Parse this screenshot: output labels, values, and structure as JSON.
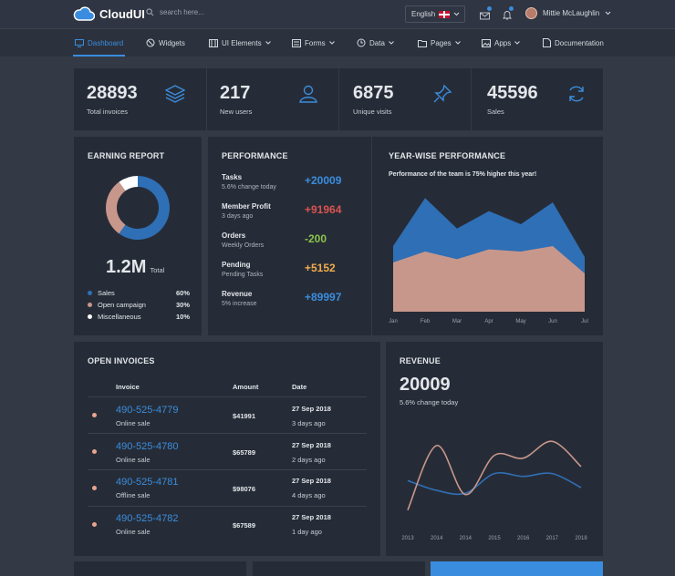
{
  "header": {
    "brand": "CloudUI",
    "search_placeholder": "search here...",
    "language": "English",
    "user_name": "Mittie McLaughlin"
  },
  "nav": [
    {
      "label": "Dashboard",
      "icon": "monitor-icon",
      "active": true
    },
    {
      "label": "Widgets",
      "icon": "target-icon"
    },
    {
      "label": "UI Elements",
      "icon": "layout-icon"
    },
    {
      "label": "Forms",
      "icon": "form-icon"
    },
    {
      "label": "Data",
      "icon": "clock-icon"
    },
    {
      "label": "Pages",
      "icon": "folder-icon"
    },
    {
      "label": "Apps",
      "icon": "image-icon"
    },
    {
      "label": "Documentation",
      "icon": "doc-icon"
    }
  ],
  "stats": [
    {
      "value": "28893",
      "label": "Total invoices",
      "icon": "layers-icon"
    },
    {
      "value": "217",
      "label": "New users",
      "icon": "users-icon"
    },
    {
      "value": "6875",
      "label": "Unique visits",
      "icon": "pin-icon"
    },
    {
      "value": "45596",
      "label": "Sales",
      "icon": "refresh-icon"
    }
  ],
  "earning": {
    "title": "EARNING REPORT",
    "total": "1.2M",
    "total_label": "Total",
    "legend": [
      {
        "label": "Sales",
        "pct": "60%",
        "color": "#2f6fb5"
      },
      {
        "label": "Open campaign",
        "pct": "30%",
        "color": "#c8978b"
      },
      {
        "label": "Miscellaneous",
        "pct": "10%",
        "color": "#ffffff"
      }
    ]
  },
  "performance": {
    "title": "PERFORMANCE",
    "items": [
      {
        "title": "Tasks",
        "sub": "5.6% change today",
        "value": "+20009",
        "color": "#3a8dde"
      },
      {
        "title": "Member Profit",
        "sub": "3 days ago",
        "value": "+91964",
        "color": "#d9534f"
      },
      {
        "title": "Orders",
        "sub": "Weekly Orders",
        "value": "-200",
        "color": "#8bc34a"
      },
      {
        "title": "Pending",
        "sub": "Pending Tasks",
        "value": "+5152",
        "color": "#f0ad4e"
      },
      {
        "title": "Revenue",
        "sub": "5% increase",
        "value": "+89997",
        "color": "#3a8dde"
      }
    ]
  },
  "yearwise": {
    "title": "YEAR-WISE PERFORMANCE",
    "subtitle": "Performance of the team is 75% higher this year!"
  },
  "invoices": {
    "title": "OPEN INVOICES",
    "columns": [
      "Invoice",
      "Amount",
      "Date"
    ],
    "rows": [
      {
        "number": "490-525-4779",
        "type": "Online sale",
        "amount": "$41991",
        "date": "27 Sep 2018",
        "ago": "3 days ago"
      },
      {
        "number": "490-525-4780",
        "type": "Online sale",
        "amount": "$65789",
        "date": "27 Sep 2018",
        "ago": "2 days ago"
      },
      {
        "number": "490-525-4781",
        "type": "Offline sale",
        "amount": "$98076",
        "date": "27 Sep 2018",
        "ago": "4 days ago"
      },
      {
        "number": "490-525-4782",
        "type": "Online sale",
        "amount": "$67589",
        "date": "27 Sep 2018",
        "ago": "1 day ago"
      }
    ]
  },
  "revenue": {
    "title": "REVENUE",
    "value": "20009",
    "sub": "5.6% change today"
  },
  "chart_data": [
    {
      "type": "pie",
      "categories": [
        "Sales",
        "Open campaign",
        "Miscellaneous"
      ],
      "values": [
        60,
        30,
        10
      ],
      "colors": [
        "#2f6fb5",
        "#c8978b",
        "#ffffff"
      ]
    },
    {
      "type": "area",
      "categories": [
        "Jan",
        "Feb",
        "Mar",
        "Apr",
        "May",
        "Jun",
        "Jul"
      ],
      "series": [
        {
          "values": [
            60,
            104,
            76,
            92,
            80,
            100,
            50
          ],
          "color": "#2f6fb5"
        },
        {
          "values": [
            45,
            55,
            48,
            57,
            55,
            60,
            35
          ],
          "color": "#c8978b"
        }
      ],
      "ylim": [
        0,
        110
      ]
    },
    {
      "type": "line",
      "categories": [
        "2013",
        "2014",
        "2014",
        "2015",
        "2016",
        "2017",
        "2018"
      ],
      "series": [
        {
          "values": [
            62,
            48,
            44,
            72,
            68,
            72,
            52
          ],
          "color": "#2f6fb5"
        },
        {
          "values": [
            20,
            112,
            42,
            98,
            94,
            118,
            82
          ],
          "color": "#c8978b"
        }
      ],
      "ylim": [
        0,
        130
      ]
    }
  ]
}
